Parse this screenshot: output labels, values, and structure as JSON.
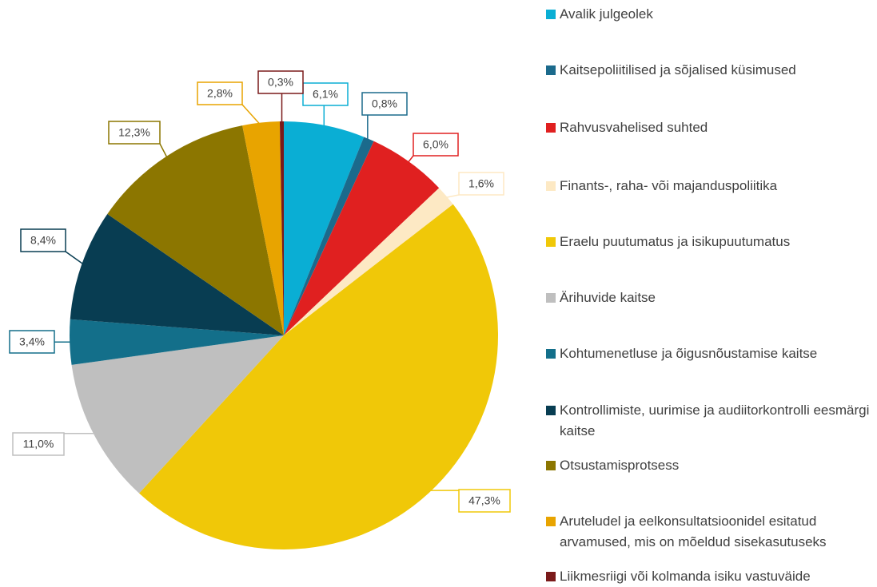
{
  "chart_data": {
    "type": "pie",
    "categories": [
      "Avalik julgeolek",
      "Kaitsepoliitilised ja sõjalised küsimused",
      "Rahvusvahelised suhted",
      "Finants-, raha- või majanduspoliitika",
      "Eraelu puutumatus ja isikupuutumatus",
      "Ärihuvide kaitse",
      "Kohtumenetluse ja õigusnõustamise kaitse",
      " Kontrollimiste, uurimise ja audiitorkontrolli eesmärgi kaitse",
      "Otsustamisprotsess",
      "Aruteludel ja eelkonsultatsioonidel esitatud arvamused, mis on mõeldud sisekasutuseks",
      "Liikmesriigi või kolmanda isiku vastuväide"
    ],
    "values": [
      6.1,
      0.8,
      6.0,
      1.6,
      47.3,
      11.0,
      3.4,
      8.4,
      12.3,
      2.8,
      0.3
    ],
    "value_labels": [
      "6,1%",
      "0,8%",
      "6,0%",
      "1,6%",
      "47,3%",
      "11,0%",
      "3,4%",
      "8,4%",
      "12,3%",
      "2,8%",
      "0,3%"
    ],
    "colors": [
      "#0aaed4",
      "#1b6a8c",
      "#e02020",
      "#fde9c4",
      "#f0c808",
      "#bfbfbf",
      "#136f8a",
      "#083d52",
      "#8c7600",
      "#e8a400",
      "#7a1a1a"
    ]
  }
}
